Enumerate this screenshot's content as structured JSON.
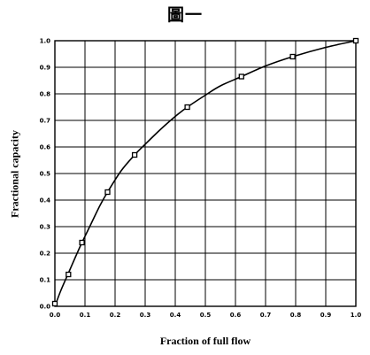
{
  "page": {
    "title": "圖一"
  },
  "chart_data": {
    "type": "line",
    "title": "",
    "xlabel": "Fraction of full flow",
    "ylabel": "Fractional capacity",
    "xlim": [
      0.0,
      1.0
    ],
    "ylim": [
      0.0,
      1.0
    ],
    "x_ticks": [
      "0.0",
      "0.1",
      "0.2",
      "0.3",
      "0.4",
      "0.5",
      "0.6",
      "0.7",
      "0.8",
      "0.9",
      "1.0"
    ],
    "y_ticks": [
      "0.0",
      "0.1",
      "0.2",
      "0.3",
      "0.4",
      "0.5",
      "0.6",
      "0.7",
      "0.8",
      "0.9",
      "1.0"
    ],
    "grid": true,
    "series": [
      {
        "type": "scatter",
        "marker": "square",
        "x": [
          0.0,
          0.045,
          0.09,
          0.175,
          0.265,
          0.44,
          0.62,
          0.79,
          1.0
        ],
        "y": [
          0.01,
          0.12,
          0.24,
          0.43,
          0.57,
          0.75,
          0.865,
          0.94,
          1.0
        ]
      },
      {
        "type": "line",
        "x": [
          0.0,
          0.02,
          0.045,
          0.07,
          0.09,
          0.12,
          0.15,
          0.175,
          0.22,
          0.265,
          0.3,
          0.35,
          0.4,
          0.44,
          0.5,
          0.55,
          0.62,
          0.7,
          0.79,
          0.9,
          1.0
        ],
        "y": [
          0.0,
          0.06,
          0.125,
          0.19,
          0.24,
          0.31,
          0.38,
          0.43,
          0.51,
          0.57,
          0.61,
          0.665,
          0.715,
          0.75,
          0.795,
          0.83,
          0.865,
          0.905,
          0.94,
          0.975,
          1.0
        ]
      }
    ]
  }
}
